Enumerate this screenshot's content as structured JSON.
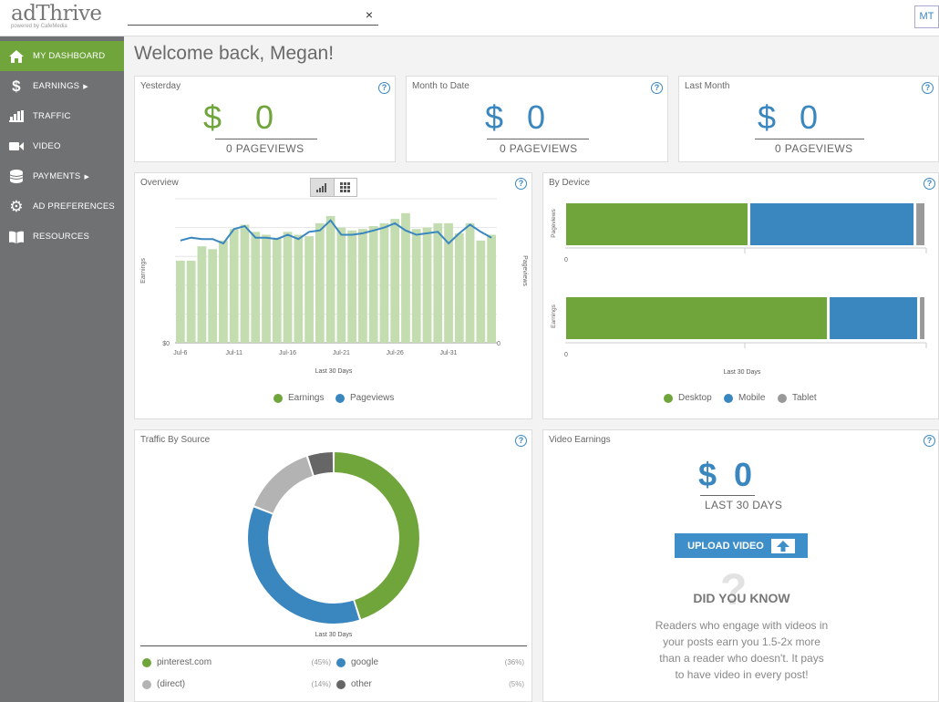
{
  "logo": {
    "name": "adThrive",
    "tagline": "powered by CafeMedia"
  },
  "search": {
    "value": "",
    "clear": "×"
  },
  "user": {
    "initials": "MT"
  },
  "sidebar": {
    "items": [
      {
        "label": "MY DASHBOARD",
        "icon": "home-icon",
        "active": true
      },
      {
        "label": "EARNINGS",
        "icon": "dollar-icon",
        "caret": true
      },
      {
        "label": "TRAFFIC",
        "icon": "bar-chart-icon"
      },
      {
        "label": "VIDEO",
        "icon": "video-camera-icon"
      },
      {
        "label": "PAYMENTS",
        "icon": "coins-icon",
        "caret": true
      },
      {
        "label": "AD PREFERENCES",
        "icon": "gear-icon"
      },
      {
        "label": "RESOURCES",
        "icon": "book-icon"
      }
    ]
  },
  "page_title": "Welcome back, Megan!",
  "stats": [
    {
      "title": "Yesterday",
      "dollar": "$",
      "value": "0",
      "pageviews": "0 PAGEVIEWS",
      "color": "#6fa53a"
    },
    {
      "title": "Month to Date",
      "dollar": "$",
      "value": "0",
      "pageviews": "0 PAGEVIEWS",
      "color": "#3a87c0"
    },
    {
      "title": "Last Month",
      "dollar": "$",
      "value": "0",
      "pageviews": "0 PAGEVIEWS",
      "color": "#3a87c0"
    }
  ],
  "help_glyph": "?",
  "overview": {
    "title": "Overview",
    "ylabel_left": "Earnings",
    "ylabel_right": "Pageviews",
    "xlabel": "Last 30 Days",
    "y_min_left": "$0",
    "y_min_right": "0",
    "legend": [
      {
        "label": "Earnings",
        "color": "#6fa53a"
      },
      {
        "label": "Pageviews",
        "color": "#3a87c0"
      }
    ]
  },
  "by_device": {
    "title": "By Device",
    "legend": [
      {
        "label": "Desktop",
        "color": "#6fa53a"
      },
      {
        "label": "Mobile",
        "color": "#3a87c0"
      },
      {
        "label": "Tablet",
        "color": "#999999"
      }
    ]
  },
  "traffic_source": {
    "title": "Traffic By Source",
    "caption": "Last 30 Days",
    "legend": [
      {
        "label": "pinterest.com",
        "pct": "(45%)",
        "color": "#6fa53a"
      },
      {
        "label": "google",
        "pct": "(36%)",
        "color": "#3a87c0"
      },
      {
        "label": "(direct)",
        "pct": "(14%)",
        "color": "#b3b3b3"
      },
      {
        "label": "other",
        "pct": "(5%)",
        "color": "#666666"
      }
    ]
  },
  "video": {
    "title": "Video Earnings",
    "dollar": "$",
    "value": "0",
    "period": "LAST 30 DAYS",
    "upload_label": "UPLOAD VIDEO",
    "did_you_know": "DID YOU KNOW",
    "tip": [
      "Readers who engage with videos in",
      "your posts earn you 1.5-2x more",
      "than a reader who doesn't. It pays",
      "to have video in every post!"
    ]
  },
  "chart_data": [
    {
      "type": "bar",
      "title": "Overview",
      "xlabel": "Last 30 Days",
      "ylabel": "Earnings",
      "y2label": "Pageviews",
      "x_ticks": [
        "Jul-6",
        "Jul-11",
        "Jul-16",
        "Jul-21",
        "Jul-26",
        "Jul-31"
      ],
      "series": [
        {
          "name": "Earnings",
          "type": "bar",
          "values": [
            57,
            57,
            67,
            65,
            71,
            79,
            82,
            77,
            75,
            73,
            77,
            75,
            74,
            83,
            88,
            80,
            78,
            79,
            81,
            83,
            86,
            90,
            79,
            80,
            83,
            83,
            76,
            83,
            71,
            75
          ]
        },
        {
          "name": "Pageviews",
          "type": "line",
          "values": [
            71,
            73,
            72,
            72,
            69,
            79,
            81,
            73,
            73,
            72,
            75,
            72,
            77,
            78,
            85,
            75,
            75,
            76,
            78,
            80,
            83,
            78,
            75,
            76,
            77,
            69,
            76,
            82,
            77,
            73
          ]
        }
      ],
      "ylim": [
        0,
        100
      ]
    },
    {
      "type": "bar",
      "title": "By Device",
      "orientation": "horizontal-stacked",
      "categories": [
        "Pageviews",
        "Earnings"
      ],
      "series": [
        {
          "name": "Desktop",
          "values": [
            51,
            73
          ]
        },
        {
          "name": "Mobile",
          "values": [
            46,
            25
          ]
        },
        {
          "name": "Tablet",
          "values": [
            3,
            2
          ]
        }
      ]
    },
    {
      "type": "pie",
      "title": "Traffic By Source",
      "labels": [
        "pinterest.com",
        "google",
        "(direct)",
        "other"
      ],
      "values": [
        45,
        36,
        14,
        5
      ]
    }
  ]
}
